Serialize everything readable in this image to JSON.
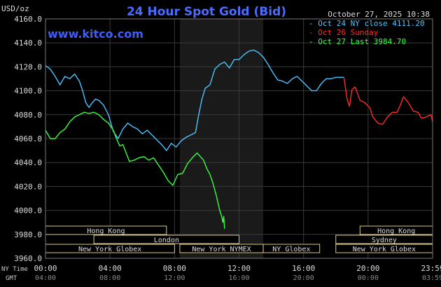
{
  "header": {
    "unit": "USD/oz",
    "title": "24 Hour Spot Gold (Bid)",
    "timestamp": "October 27, 2025 10:38",
    "website": "www.kitco.com"
  },
  "colors": {
    "background": "#000000",
    "title": "#4a6cff",
    "website": "#3f5dff",
    "grid": "#3a3a3a",
    "ny_session_shade": "#1a1a1a",
    "text": "#dcdcdc",
    "oct24": "#4cc4ff",
    "oct26": "#ff2a2a",
    "oct27": "#39ff3f",
    "market_bar": "#d8c98a"
  },
  "legend": {
    "placement": "top-right",
    "items": [
      {
        "label": "Oct 24 NY close 4111.20",
        "color_key": "oct24"
      },
      {
        "label": "Oct 26 Sunday",
        "color_key": "oct26"
      },
      {
        "label": "Oct 27 Last 3984.70",
        "color_key": "oct27"
      }
    ]
  },
  "footer": {
    "ny_time_label": "NY Time",
    "gmt_label": "GMT"
  },
  "markets": [
    {
      "label": "Hong Kong",
      "start": 0,
      "end": 7.5,
      "row": 0
    },
    {
      "label": "Hong Kong",
      "start": 19.5,
      "end": 24,
      "row": 0
    },
    {
      "label": "London",
      "start": 3,
      "end": 12,
      "row": 1
    },
    {
      "label": "Sydney",
      "start": 18,
      "end": 24,
      "row": 1
    },
    {
      "label": "New York Globex",
      "start": 0,
      "end": 8,
      "row": 2
    },
    {
      "label": "New York NYMEX",
      "start": 8.33,
      "end": 13.5,
      "row": 2
    },
    {
      "label": "NY Globex",
      "start": 13.5,
      "end": 17,
      "row": 2
    },
    {
      "label": "New York Globex",
      "start": 18,
      "end": 24,
      "row": 2
    }
  ],
  "chart_data": {
    "type": "line",
    "title": "24 Hour Spot Gold (Bid)",
    "ylabel": "USD/oz",
    "ylim": [
      3960,
      4160
    ],
    "yticks": [
      "4160.0",
      "4140.0",
      "4120.0",
      "4100.0",
      "4080.0",
      "4060.0",
      "4040.0",
      "4020.0",
      "4000.0",
      "3980.0",
      "3960.0"
    ],
    "ytick_values": [
      4160,
      4140,
      4120,
      4100,
      4080,
      4060,
      4040,
      4020,
      4000,
      3980,
      3960
    ],
    "xlim": [
      0,
      24
    ],
    "xticks_ny": [
      "00:00",
      "04:00",
      "08:00",
      "12:00",
      "16:00",
      "20:00",
      "23:59"
    ],
    "xticks_gmt": [
      "04:00",
      "08:00",
      "12:00",
      "16:00",
      "20:00",
      "00:00",
      "03:59"
    ],
    "xtick_values": [
      0,
      4,
      8,
      12,
      16,
      20,
      24
    ],
    "grid": true,
    "shaded_region": [
      8.33,
      13.5
    ],
    "series": [
      {
        "name": "Oct 24 NY close 4111.20",
        "color_key": "oct24",
        "points": [
          [
            0,
            4121
          ],
          [
            0.3,
            4118
          ],
          [
            0.6,
            4112
          ],
          [
            0.9,
            4105
          ],
          [
            1.2,
            4112
          ],
          [
            1.5,
            4110
          ],
          [
            1.8,
            4114
          ],
          [
            2.1,
            4108
          ],
          [
            2.3,
            4100
          ],
          [
            2.5,
            4090
          ],
          [
            2.7,
            4086
          ],
          [
            2.9,
            4090
          ],
          [
            3.1,
            4093
          ],
          [
            3.3,
            4092
          ],
          [
            3.6,
            4088
          ],
          [
            3.9,
            4080
          ],
          [
            4.2,
            4066
          ],
          [
            4.5,
            4060
          ],
          [
            4.8,
            4068
          ],
          [
            5.1,
            4073
          ],
          [
            5.4,
            4070
          ],
          [
            5.7,
            4068
          ],
          [
            6.0,
            4064
          ],
          [
            6.3,
            4067
          ],
          [
            6.6,
            4063
          ],
          [
            6.9,
            4059
          ],
          [
            7.2,
            4055
          ],
          [
            7.5,
            4050
          ],
          [
            7.8,
            4056
          ],
          [
            8.1,
            4053
          ],
          [
            8.4,
            4058
          ],
          [
            8.7,
            4061
          ],
          [
            9.0,
            4063
          ],
          [
            9.3,
            4065
          ],
          [
            9.5,
            4080
          ],
          [
            9.7,
            4093
          ],
          [
            9.9,
            4102
          ],
          [
            10.2,
            4105
          ],
          [
            10.5,
            4118
          ],
          [
            10.8,
            4122
          ],
          [
            11.1,
            4124
          ],
          [
            11.4,
            4119
          ],
          [
            11.7,
            4126
          ],
          [
            12.0,
            4126
          ],
          [
            12.3,
            4130
          ],
          [
            12.6,
            4133
          ],
          [
            12.9,
            4134
          ],
          [
            13.2,
            4132
          ],
          [
            13.5,
            4128
          ],
          [
            13.8,
            4122
          ],
          [
            14.1,
            4115
          ],
          [
            14.4,
            4109
          ],
          [
            14.7,
            4108
          ],
          [
            15.0,
            4106
          ],
          [
            15.3,
            4110
          ],
          [
            15.6,
            4112
          ],
          [
            15.9,
            4108
          ],
          [
            16.2,
            4104
          ],
          [
            16.5,
            4100
          ],
          [
            16.8,
            4100
          ],
          [
            17.1,
            4106
          ],
          [
            17.4,
            4110
          ],
          [
            17.7,
            4110
          ],
          [
            18.0,
            4111.2
          ],
          [
            18.5,
            4111.2
          ]
        ]
      },
      {
        "name": "Oct 26 Sunday",
        "color_key": "oct26",
        "points": [
          [
            18.5,
            4111.2
          ],
          [
            18.7,
            4093
          ],
          [
            18.85,
            4087
          ],
          [
            19.0,
            4101
          ],
          [
            19.2,
            4103
          ],
          [
            19.5,
            4092
          ],
          [
            19.8,
            4090
          ],
          [
            20.1,
            4086
          ],
          [
            20.3,
            4078
          ],
          [
            20.6,
            4073
          ],
          [
            20.9,
            4072
          ],
          [
            21.2,
            4078
          ],
          [
            21.5,
            4082
          ],
          [
            21.8,
            4082
          ],
          [
            22.0,
            4088
          ],
          [
            22.2,
            4095
          ],
          [
            22.5,
            4090
          ],
          [
            22.8,
            4083
          ],
          [
            23.1,
            4082
          ],
          [
            23.3,
            4077
          ],
          [
            23.6,
            4078
          ],
          [
            23.9,
            4080
          ],
          [
            24,
            4074
          ]
        ]
      },
      {
        "name": "Oct 27 Last 3984.70",
        "color_key": "oct27",
        "points": [
          [
            0,
            4067
          ],
          [
            0.3,
            4060
          ],
          [
            0.6,
            4060
          ],
          [
            0.9,
            4065
          ],
          [
            1.2,
            4068
          ],
          [
            1.5,
            4074
          ],
          [
            1.8,
            4078
          ],
          [
            2.1,
            4080
          ],
          [
            2.4,
            4082
          ],
          [
            2.7,
            4081
          ],
          [
            3.0,
            4082
          ],
          [
            3.3,
            4080
          ],
          [
            3.6,
            4076
          ],
          [
            3.9,
            4073
          ],
          [
            4.2,
            4067
          ],
          [
            4.4,
            4060
          ],
          [
            4.6,
            4054
          ],
          [
            4.8,
            4055
          ],
          [
            5.0,
            4048
          ],
          [
            5.2,
            4041
          ],
          [
            5.5,
            4042
          ],
          [
            5.8,
            4044
          ],
          [
            6.1,
            4045
          ],
          [
            6.4,
            4042
          ],
          [
            6.7,
            4044
          ],
          [
            7.0,
            4038
          ],
          [
            7.3,
            4032
          ],
          [
            7.6,
            4025
          ],
          [
            7.9,
            4021
          ],
          [
            8.2,
            4030
          ],
          [
            8.5,
            4031
          ],
          [
            8.8,
            4039
          ],
          [
            9.1,
            4044
          ],
          [
            9.4,
            4048
          ],
          [
            9.6,
            4045
          ],
          [
            9.8,
            4042
          ],
          [
            10.0,
            4035
          ],
          [
            10.2,
            4030
          ],
          [
            10.4,
            4022
          ],
          [
            10.6,
            4012
          ],
          [
            10.8,
            4000
          ],
          [
            10.9,
            3996
          ],
          [
            11.0,
            3990
          ],
          [
            11.05,
            3995
          ],
          [
            11.1,
            3984.7
          ]
        ]
      }
    ]
  }
}
